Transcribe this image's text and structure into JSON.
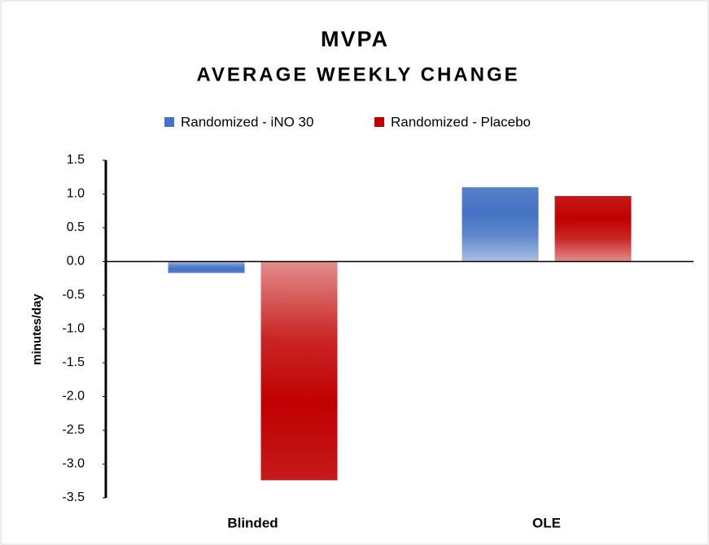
{
  "chart_data": {
    "type": "bar",
    "title": "MVPA",
    "subtitle": "AVERAGE WEEKLY CHANGE",
    "y_label": "minutes/day",
    "categories": [
      "Blinded",
      "OLE"
    ],
    "series": [
      {
        "name": "Randomized - iNO 30",
        "color": "#4472c4",
        "values": [
          -0.17,
          1.1
        ]
      },
      {
        "name": "Randomized - Placebo",
        "color": "#c00000",
        "values": [
          -3.24,
          0.97
        ]
      }
    ],
    "ylim": [
      -3.5,
      1.5
    ],
    "yticks": [
      -3.5,
      {
        "value": -3,
        "label": "-3.0"
      },
      -2.5,
      {
        "value": -2,
        "label": "-2.0"
      },
      -1.5,
      {
        "value": -1,
        "label": "-1.0"
      },
      -0.5,
      {
        "value": 0,
        "label": "0.0"
      },
      0.5,
      {
        "value": 1,
        "label": "1.0"
      },
      1.5
    ],
    "legend": "top",
    "grid": false
  }
}
